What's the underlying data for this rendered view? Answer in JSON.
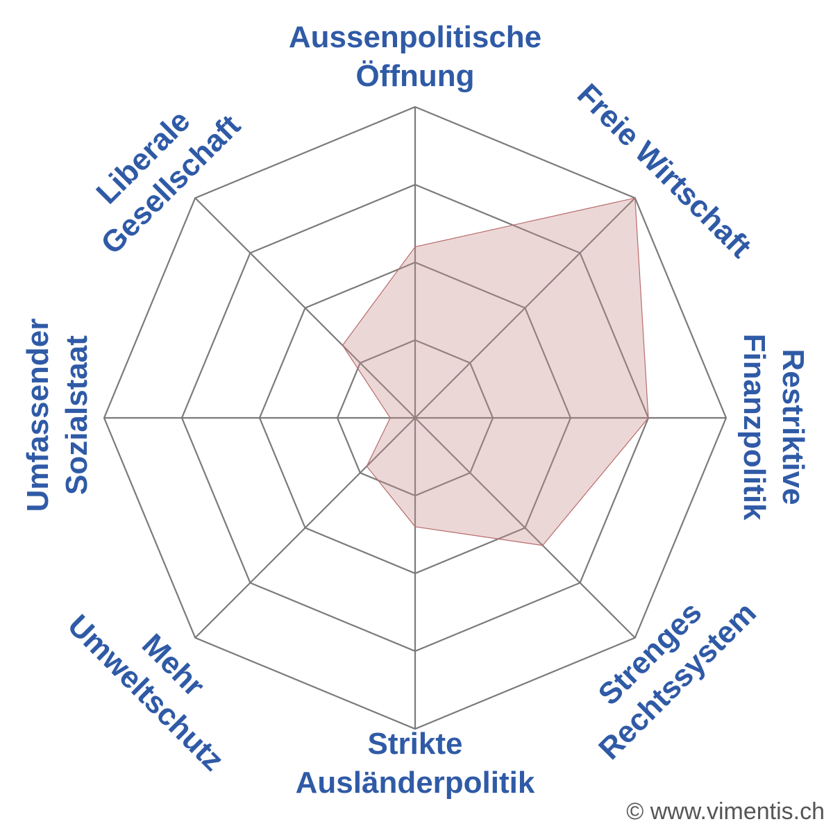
{
  "chart_data": {
    "type": "radar",
    "axes": [
      {
        "key": "aussen",
        "label_lines": [
          "Aussenpolitische",
          "Öffnung"
        ]
      },
      {
        "key": "wirtschaft",
        "label_lines": [
          "Freie Wirtschaft"
        ]
      },
      {
        "key": "finanz",
        "label_lines": [
          "Restriktive",
          "Finanzpolitik"
        ]
      },
      {
        "key": "recht",
        "label_lines": [
          "Strenges",
          "Rechtssystem"
        ]
      },
      {
        "key": "auslaender",
        "label_lines": [
          "Strikte",
          "Ausländerpolitik"
        ]
      },
      {
        "key": "umwelt",
        "label_lines": [
          "Mehr",
          "Umweltschutz"
        ]
      },
      {
        "key": "sozial",
        "label_lines": [
          "Umfassender",
          "Sozialstaat"
        ]
      },
      {
        "key": "gesellschaft",
        "label_lines": [
          "Liberale",
          "Gesellschaft"
        ]
      }
    ],
    "rings": 4,
    "range": [
      0,
      100
    ],
    "series": [
      {
        "values": [
          55,
          100,
          75,
          58,
          35,
          22,
          8,
          33
        ]
      }
    ],
    "colors": {
      "grid": "#7a7a7a",
      "label": "#2f5aa6",
      "fill": "#c98b8b",
      "fill_opacity": 0.35,
      "stroke": "#b86a6a"
    }
  },
  "footer": {
    "credit": "© www.vimentis.ch"
  }
}
